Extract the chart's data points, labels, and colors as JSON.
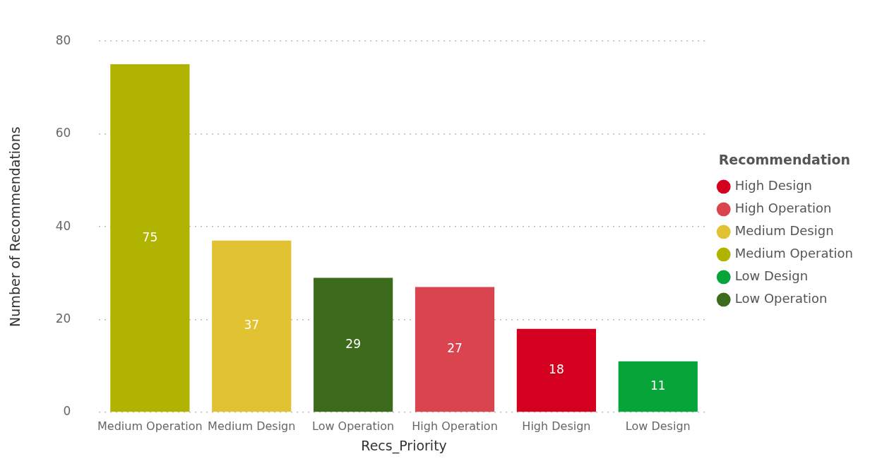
{
  "chart_data": {
    "type": "bar",
    "xlabel": "Recs_Priority",
    "ylabel": "Number of Recommendations",
    "legend_title": "Recommendation",
    "categories": [
      "Medium Operation",
      "Medium Design",
      "Low Operation",
      "High Operation",
      "High Design",
      "Low Design"
    ],
    "series": [
      {
        "name": "High Design",
        "color": "#d4001f",
        "values": [
          null,
          null,
          null,
          null,
          18,
          null
        ]
      },
      {
        "name": "High Operation",
        "color": "#d9444e",
        "values": [
          null,
          null,
          null,
          27,
          null,
          null
        ]
      },
      {
        "name": "Medium Design",
        "color": "#e0c232",
        "values": [
          null,
          37,
          null,
          null,
          null,
          null
        ]
      },
      {
        "name": "Medium Operation",
        "color": "#b0b400",
        "values": [
          75,
          null,
          null,
          null,
          null,
          null
        ]
      },
      {
        "name": "Low Design",
        "color": "#07a43a",
        "values": [
          null,
          null,
          null,
          null,
          null,
          11
        ]
      },
      {
        "name": "Low Operation",
        "color": "#3d6b1c",
        "values": [
          null,
          null,
          29,
          null,
          null,
          null
        ]
      }
    ],
    "ylim": [
      0,
      80
    ],
    "yticks": [
      0,
      20,
      40,
      60,
      80
    ],
    "grid": "y",
    "legend": "right",
    "data_labels": true
  }
}
